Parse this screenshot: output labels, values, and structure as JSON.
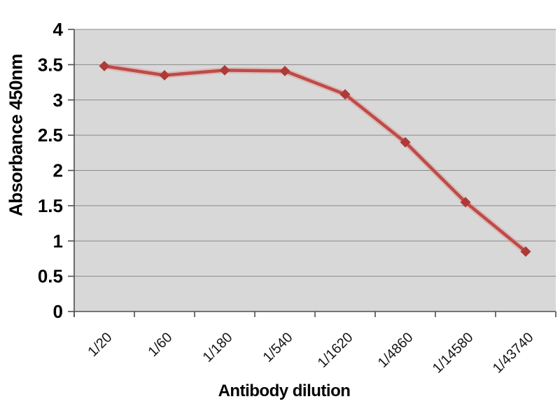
{
  "chart_data": {
    "type": "line",
    "title": "",
    "xlabel": "Antibody dilution",
    "ylabel": "Absorbance 450nm",
    "categories": [
      "1/20",
      "1/60",
      "1/180",
      "1/540",
      "1/1620",
      "1/4860",
      "1/14580",
      "1/43740"
    ],
    "series": [
      {
        "name": "Absorbance 450nm",
        "values": [
          3.48,
          3.35,
          3.42,
          3.41,
          3.08,
          2.4,
          1.55,
          0.85
        ]
      }
    ],
    "ylim": [
      0,
      4
    ],
    "ytick_step": 0.5,
    "ytick_labels": [
      "0",
      "0.5",
      "1",
      "1.5",
      "2",
      "2.5",
      "3",
      "3.5",
      "4"
    ],
    "xtick_rotation_deg": -45,
    "grid": "horizontal",
    "legend": "none",
    "marker": "diamond",
    "colors": {
      "line": "#be4b48",
      "line_halo": "#dd9a95",
      "marker": "#ae3a38",
      "plot_background": "#d8d8d8",
      "gridline": "#8a8a8a",
      "axis_line": "#4d4d4d",
      "text": "#000000",
      "page_background": "#ffffff"
    }
  }
}
